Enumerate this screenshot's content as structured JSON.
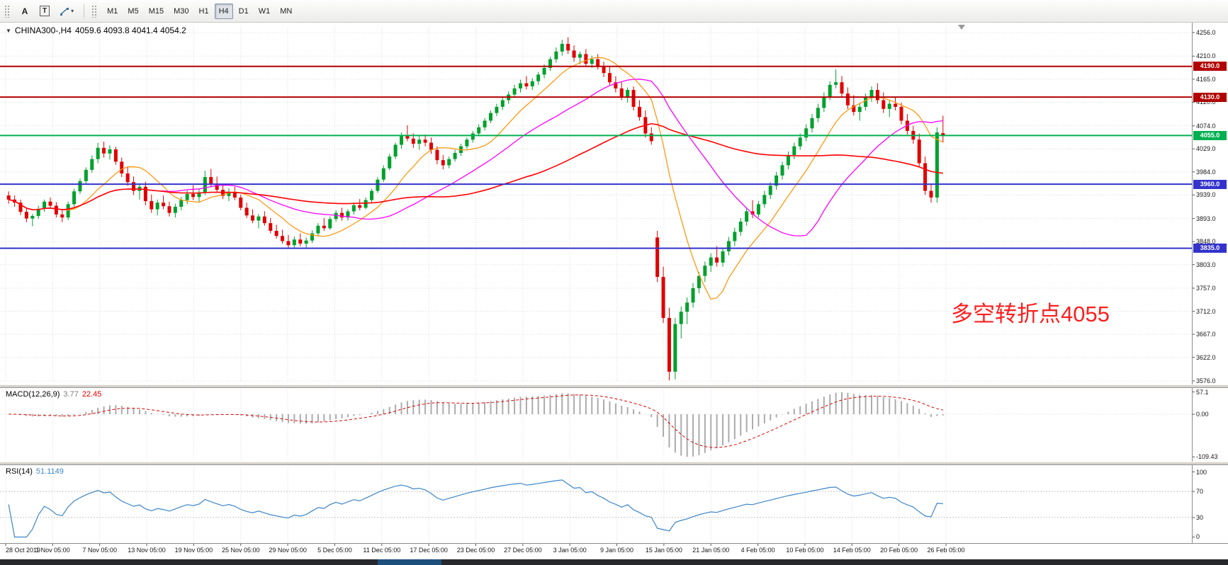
{
  "toolbar": {
    "tools": [
      {
        "name": "text-tool",
        "label": "A"
      },
      {
        "name": "text-label-tool",
        "label": "T"
      }
    ],
    "timeframes": [
      {
        "label": "M1"
      },
      {
        "label": "M5"
      },
      {
        "label": "M15"
      },
      {
        "label": "M30"
      },
      {
        "label": "H1"
      },
      {
        "label": "H4",
        "active": true
      },
      {
        "label": "D1"
      },
      {
        "label": "W1"
      },
      {
        "label": "MN"
      }
    ]
  },
  "chart": {
    "header": {
      "symbol": "CHINA300-,H4",
      "ohlc": "4059.6 4093.8 4041.4 4054.2"
    },
    "annotation": {
      "text": "多空转折点4055",
      "color": "#ff1f1f"
    },
    "price_axis": {
      "labels": [
        "4256.0",
        "4210.0",
        "4165.0",
        "4120.0",
        "4074.0",
        "4029.0",
        "3984.0",
        "3939.0",
        "3893.0",
        "3848.0",
        "3803.0",
        "3757.0",
        "3712.0",
        "3667.0",
        "3622.0",
        "3576.0"
      ]
    },
    "levels": [
      {
        "value": 4190.0,
        "label": "4190.0",
        "color": "#b20000"
      },
      {
        "value": 4130.0,
        "label": "4130.0",
        "color": "#b20000"
      },
      {
        "value": 4055.0,
        "label": "4055.0",
        "color": "#00b050"
      },
      {
        "value": 3960.0,
        "label": "3960.0",
        "color": "#3333cc"
      },
      {
        "value": 3835.0,
        "label": "3835.0",
        "color": "#3333cc"
      }
    ],
    "moving_averages": [
      {
        "name": "ma-fast-line",
        "period": 10,
        "color": "#ff9914",
        "width": 1.3
      },
      {
        "name": "ma-mid-line",
        "period": 26,
        "color": "#ff00ff",
        "width": 1.3
      },
      {
        "name": "ma-slow-line",
        "period": 55,
        "color": "#ff0000",
        "width": 1.6
      }
    ],
    "candle_colors": {
      "up": "#00a02c",
      "down": "#e00000"
    }
  },
  "chart_data": {
    "type": "candlestick",
    "title": "CHINA300-,H4",
    "ylim": [
      3576,
      4256
    ],
    "ohlc_current": {
      "open": 4059.6,
      "high": 4093.8,
      "low": 4041.4,
      "close": 4054.2
    },
    "time_labels": [
      "28 Oct 2019",
      "1 Nov 05:00",
      "7 Nov 05:00",
      "13 Nov 05:00",
      "19 Nov 05:00",
      "25 Nov 05:00",
      "29 Nov 05:00",
      "5 Dec 05:00",
      "11 Dec 05:00",
      "17 Dec 05:00",
      "23 Dec 05:00",
      "27 Dec 05:00",
      "3 Jan 05:00",
      "9 Jan 05:00",
      "15 Jan 05:00",
      "21 Jan 05:00",
      "4 Feb 05:00",
      "10 Feb 05:00",
      "14 Feb 05:00",
      "20 Feb 05:00",
      "26 Feb 05:00"
    ],
    "candles": [
      [
        3938,
        3946,
        3922,
        3930
      ],
      [
        3930,
        3938,
        3916,
        3924
      ],
      [
        3924,
        3930,
        3900,
        3906
      ],
      [
        3906,
        3914,
        3886,
        3893
      ],
      [
        3893,
        3902,
        3878,
        3898
      ],
      [
        3898,
        3918,
        3892,
        3912
      ],
      [
        3912,
        3930,
        3906,
        3926
      ],
      [
        3926,
        3934,
        3912,
        3918
      ],
      [
        3918,
        3925,
        3895,
        3901
      ],
      [
        3901,
        3910,
        3886,
        3895
      ],
      [
        3895,
        3926,
        3890,
        3921
      ],
      [
        3921,
        3951,
        3916,
        3946
      ],
      [
        3946,
        3971,
        3941,
        3966
      ],
      [
        3966,
        3993,
        3961,
        3988
      ],
      [
        3988,
        4016,
        3982,
        4009
      ],
      [
        4009,
        4041,
        4001,
        4031
      ],
      [
        4031,
        4043,
        4012,
        4020
      ],
      [
        4020,
        4036,
        4008,
        4028
      ],
      [
        4028,
        4033,
        3998,
        4004
      ],
      [
        4004,
        4012,
        3974,
        3981
      ],
      [
        3981,
        3995,
        3957,
        3964
      ],
      [
        3964,
        3975,
        3939,
        3947
      ],
      [
        3947,
        3962,
        3930,
        3955
      ],
      [
        3955,
        3965,
        3919,
        3927
      ],
      [
        3927,
        3940,
        3904,
        3911
      ],
      [
        3911,
        3930,
        3899,
        3924
      ],
      [
        3924,
        3938,
        3911,
        3917
      ],
      [
        3917,
        3926,
        3897,
        3904
      ],
      [
        3904,
        3922,
        3895,
        3916
      ],
      [
        3916,
        3935,
        3909,
        3929
      ],
      [
        3929,
        3948,
        3921,
        3941
      ],
      [
        3941,
        3958,
        3929,
        3935
      ],
      [
        3935,
        3950,
        3924,
        3944
      ],
      [
        3944,
        3986,
        3939,
        3974
      ],
      [
        3974,
        3990,
        3954,
        3961
      ],
      [
        3961,
        3975,
        3944,
        3949
      ],
      [
        3949,
        3960,
        3931,
        3937
      ],
      [
        3937,
        3952,
        3927,
        3945
      ],
      [
        3945,
        3955,
        3929,
        3934
      ],
      [
        3934,
        3940,
        3909,
        3914
      ],
      [
        3914,
        3924,
        3894,
        3899
      ],
      [
        3899,
        3911,
        3884,
        3889
      ],
      [
        3889,
        3902,
        3874,
        3897
      ],
      [
        3897,
        3907,
        3879,
        3884
      ],
      [
        3884,
        3894,
        3864,
        3869
      ],
      [
        3869,
        3881,
        3854,
        3859
      ],
      [
        3859,
        3871,
        3844,
        3849
      ],
      [
        3849,
        3861,
        3836,
        3841
      ],
      [
        3841,
        3858,
        3834,
        3852
      ],
      [
        3852,
        3864,
        3839,
        3844
      ],
      [
        3844,
        3856,
        3835,
        3850
      ],
      [
        3850,
        3870,
        3845,
        3864
      ],
      [
        3864,
        3884,
        3859,
        3879
      ],
      [
        3879,
        3894,
        3869,
        3874
      ],
      [
        3874,
        3897,
        3871,
        3892
      ],
      [
        3892,
        3909,
        3887,
        3904
      ],
      [
        3904,
        3914,
        3889,
        3895
      ],
      [
        3895,
        3911,
        3889,
        3907
      ],
      [
        3907,
        3924,
        3901,
        3919
      ],
      [
        3919,
        3931,
        3909,
        3914
      ],
      [
        3914,
        3934,
        3911,
        3929
      ],
      [
        3929,
        3951,
        3924,
        3947
      ],
      [
        3947,
        3974,
        3943,
        3969
      ],
      [
        3969,
        3997,
        3964,
        3991
      ],
      [
        3991,
        4019,
        3987,
        4014
      ],
      [
        4014,
        4041,
        4009,
        4037
      ],
      [
        4037,
        4061,
        4029,
        4054
      ],
      [
        4054,
        4075,
        4044,
        4049
      ],
      [
        4049,
        4059,
        4031,
        4039
      ],
      [
        4039,
        4054,
        4027,
        4047
      ],
      [
        4047,
        4057,
        4034,
        4041
      ],
      [
        4041,
        4051,
        4019,
        4027
      ],
      [
        4027,
        4034,
        3999,
        4007
      ],
      [
        4007,
        4017,
        3989,
        3997
      ],
      [
        3997,
        4014,
        3991,
        4009
      ],
      [
        4009,
        4027,
        4004,
        4021
      ],
      [
        4021,
        4039,
        4015,
        4034
      ],
      [
        4034,
        4051,
        4029,
        4047
      ],
      [
        4047,
        4064,
        4041,
        4059
      ],
      [
        4059,
        4077,
        4054,
        4071
      ],
      [
        4071,
        4089,
        4065,
        4084
      ],
      [
        4084,
        4104,
        4079,
        4099
      ],
      [
        4099,
        4117,
        4093,
        4111
      ],
      [
        4111,
        4129,
        4105,
        4124
      ],
      [
        4124,
        4141,
        4117,
        4135
      ],
      [
        4135,
        4154,
        4129,
        4147
      ],
      [
        4147,
        4164,
        4139,
        4157
      ],
      [
        4157,
        4171,
        4145,
        4151
      ],
      [
        4151,
        4167,
        4144,
        4161
      ],
      [
        4161,
        4179,
        4154,
        4174
      ],
      [
        4174,
        4194,
        4167,
        4187
      ],
      [
        4187,
        4209,
        4181,
        4204
      ],
      [
        4204,
        4227,
        4197,
        4219
      ],
      [
        4219,
        4242,
        4211,
        4234
      ],
      [
        4234,
        4247,
        4214,
        4221
      ],
      [
        4221,
        4231,
        4199,
        4207
      ],
      [
        4207,
        4219,
        4194,
        4214
      ],
      [
        4214,
        4224,
        4189,
        4195
      ],
      [
        4195,
        4211,
        4187,
        4204
      ],
      [
        4204,
        4214,
        4184,
        4189
      ],
      [
        4189,
        4199,
        4169,
        4177
      ],
      [
        4177,
        4189,
        4154,
        4159
      ],
      [
        4159,
        4171,
        4139,
        4147
      ],
      [
        4147,
        4159,
        4124,
        4131
      ],
      [
        4131,
        4149,
        4119,
        4144
      ],
      [
        4144,
        4151,
        4104,
        4111
      ],
      [
        4111,
        4124,
        4084,
        4091
      ],
      [
        4091,
        4104,
        4051,
        4059
      ],
      [
        4059,
        4071,
        4037,
        4044
      ],
      [
        3856,
        3869,
        3769,
        3779
      ],
      [
        3779,
        3799,
        3689,
        3699
      ],
      [
        3699,
        3719,
        3577,
        3594
      ],
      [
        3594,
        3699,
        3579,
        3687
      ],
      [
        3687,
        3721,
        3659,
        3711
      ],
      [
        3711,
        3739,
        3687,
        3729
      ],
      [
        3729,
        3767,
        3719,
        3757
      ],
      [
        3757,
        3789,
        3747,
        3781
      ],
      [
        3781,
        3809,
        3769,
        3801
      ],
      [
        3801,
        3825,
        3789,
        3817
      ],
      [
        3817,
        3839,
        3799,
        3807
      ],
      [
        3807,
        3834,
        3799,
        3829
      ],
      [
        3829,
        3857,
        3821,
        3849
      ],
      [
        3849,
        3875,
        3839,
        3867
      ],
      [
        3867,
        3894,
        3859,
        3887
      ],
      [
        3887,
        3914,
        3879,
        3907
      ],
      [
        3907,
        3929,
        3894,
        3901
      ],
      [
        3901,
        3927,
        3895,
        3921
      ],
      [
        3921,
        3947,
        3914,
        3939
      ],
      [
        3939,
        3964,
        3931,
        3957
      ],
      [
        3957,
        3984,
        3949,
        3977
      ],
      [
        3977,
        4004,
        3969,
        3997
      ],
      [
        3997,
        4024,
        3989,
        4017
      ],
      [
        4017,
        4041,
        4009,
        4034
      ],
      [
        4034,
        4059,
        4027,
        4051
      ],
      [
        4051,
        4077,
        4044,
        4069
      ],
      [
        4069,
        4097,
        4061,
        4089
      ],
      [
        4089,
        4117,
        4081,
        4109
      ],
      [
        4109,
        4139,
        4101,
        4131
      ],
      [
        4131,
        4161,
        4124,
        4154
      ],
      [
        4154,
        4184,
        4147,
        4159
      ],
      [
        4159,
        4171,
        4129,
        4137
      ],
      [
        4137,
        4149,
        4107,
        4114
      ],
      [
        4114,
        4134,
        4094,
        4101
      ],
      [
        4101,
        4119,
        4084,
        4111
      ],
      [
        4111,
        4137,
        4104,
        4129
      ],
      [
        4129,
        4151,
        4121,
        4144
      ],
      [
        4144,
        4157,
        4117,
        4124
      ],
      [
        4124,
        4139,
        4099,
        4107
      ],
      [
        4107,
        4124,
        4091,
        4117
      ],
      [
        4117,
        4131,
        4104,
        4111
      ],
      [
        4111,
        4119,
        4077,
        4084
      ],
      [
        4084,
        4097,
        4057,
        4064
      ],
      [
        4064,
        4074,
        4039,
        4047
      ],
      [
        4047,
        4059,
        3994,
        4001
      ],
      [
        4001,
        4014,
        3939,
        3947
      ],
      [
        3947,
        3959,
        3924,
        3934
      ],
      [
        3934,
        4071,
        3924,
        4061
      ],
      [
        4059.6,
        4093.8,
        4041.4,
        4054.2
      ]
    ]
  },
  "macd": {
    "title": "MACD(12,26,9)",
    "value_main": "3.77",
    "value_signal": "22.45",
    "axis_labels": [
      "57.1",
      "0.00",
      "-109.43"
    ],
    "axis_values": [
      57.1,
      0,
      -109.43
    ],
    "colors": {
      "hist": "#ababab",
      "signal": "#e00000"
    }
  },
  "rsi": {
    "title": "RSI(14)",
    "value": "51.1149",
    "axis_labels": [
      "100",
      "70",
      "30",
      "0"
    ],
    "axis_values": [
      100,
      70,
      30,
      0
    ],
    "levels": [
      70,
      30
    ],
    "color": "#3d85c8"
  }
}
